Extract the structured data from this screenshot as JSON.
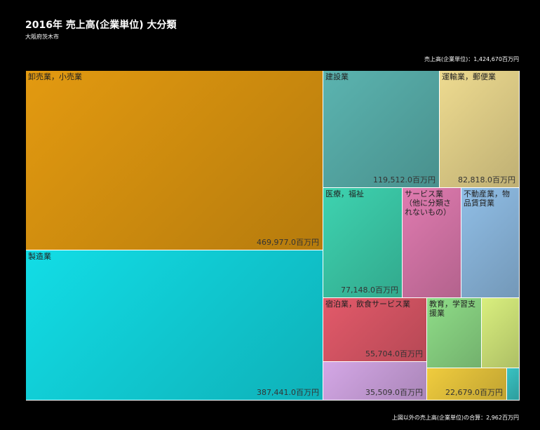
{
  "title": "2016年 売上高(企業単位) 大分類",
  "subtitle": "大阪府茨木市",
  "total_label": "売上高(企業単位)：1,424,670百万円",
  "footer_label": "上図以外の売上高(企業単位)の合算：2,962百万円",
  "chart_data": {
    "type": "treemap",
    "title": "2016年 売上高(企業単位) 大分類",
    "subtitle": "大阪府茨木市",
    "unit": "百万円",
    "total": 1424670,
    "other_total": 2962,
    "categories": [
      {
        "name": "卸売業，小売業",
        "value": 469977.0,
        "value_label": "469,977.0百万円",
        "color": "#e39a10"
      },
      {
        "name": "製造業",
        "value": 387441.0,
        "value_label": "387,441.0百万円",
        "color": "#12dde6"
      },
      {
        "name": "建設業",
        "value": 119512.0,
        "value_label": "119,512.0百万円",
        "color": "#5bb4b0"
      },
      {
        "name": "運輸業，郵便業",
        "value": 82818.0,
        "value_label": "82,818.0百万円",
        "color": "#eedb90"
      },
      {
        "name": "医療，福祉",
        "value": 77148.0,
        "value_label": "77,148.0百万円",
        "color": "#3ed3b0"
      },
      {
        "name": "サービス業（他に分類されないもの）",
        "value": null,
        "value_label": "",
        "color": "#e07bb0"
      },
      {
        "name": "不動産業，物品賃貸業",
        "value": null,
        "value_label": "",
        "color": "#90bee6"
      },
      {
        "name": "宿泊業，飲食サービス業",
        "value": 55704.0,
        "value_label": "55,704.0百万円",
        "color": "#e35a6a"
      },
      {
        "name": "教育，学習支援業",
        "value": null,
        "value_label": "",
        "color": "#8fdd88"
      },
      {
        "name": "",
        "value": 35509.0,
        "value_label": "35,509.0百万円",
        "color": "#d4a7e6"
      },
      {
        "name": "",
        "value": 22679.0,
        "value_label": "22,679.0百万円",
        "color": "#f0cc3e"
      },
      {
        "name": "",
        "value": null,
        "value_label": "",
        "color": "#d9ef7e"
      },
      {
        "name": "",
        "value": null,
        "value_label": "",
        "color": "#39c3c3"
      }
    ]
  }
}
